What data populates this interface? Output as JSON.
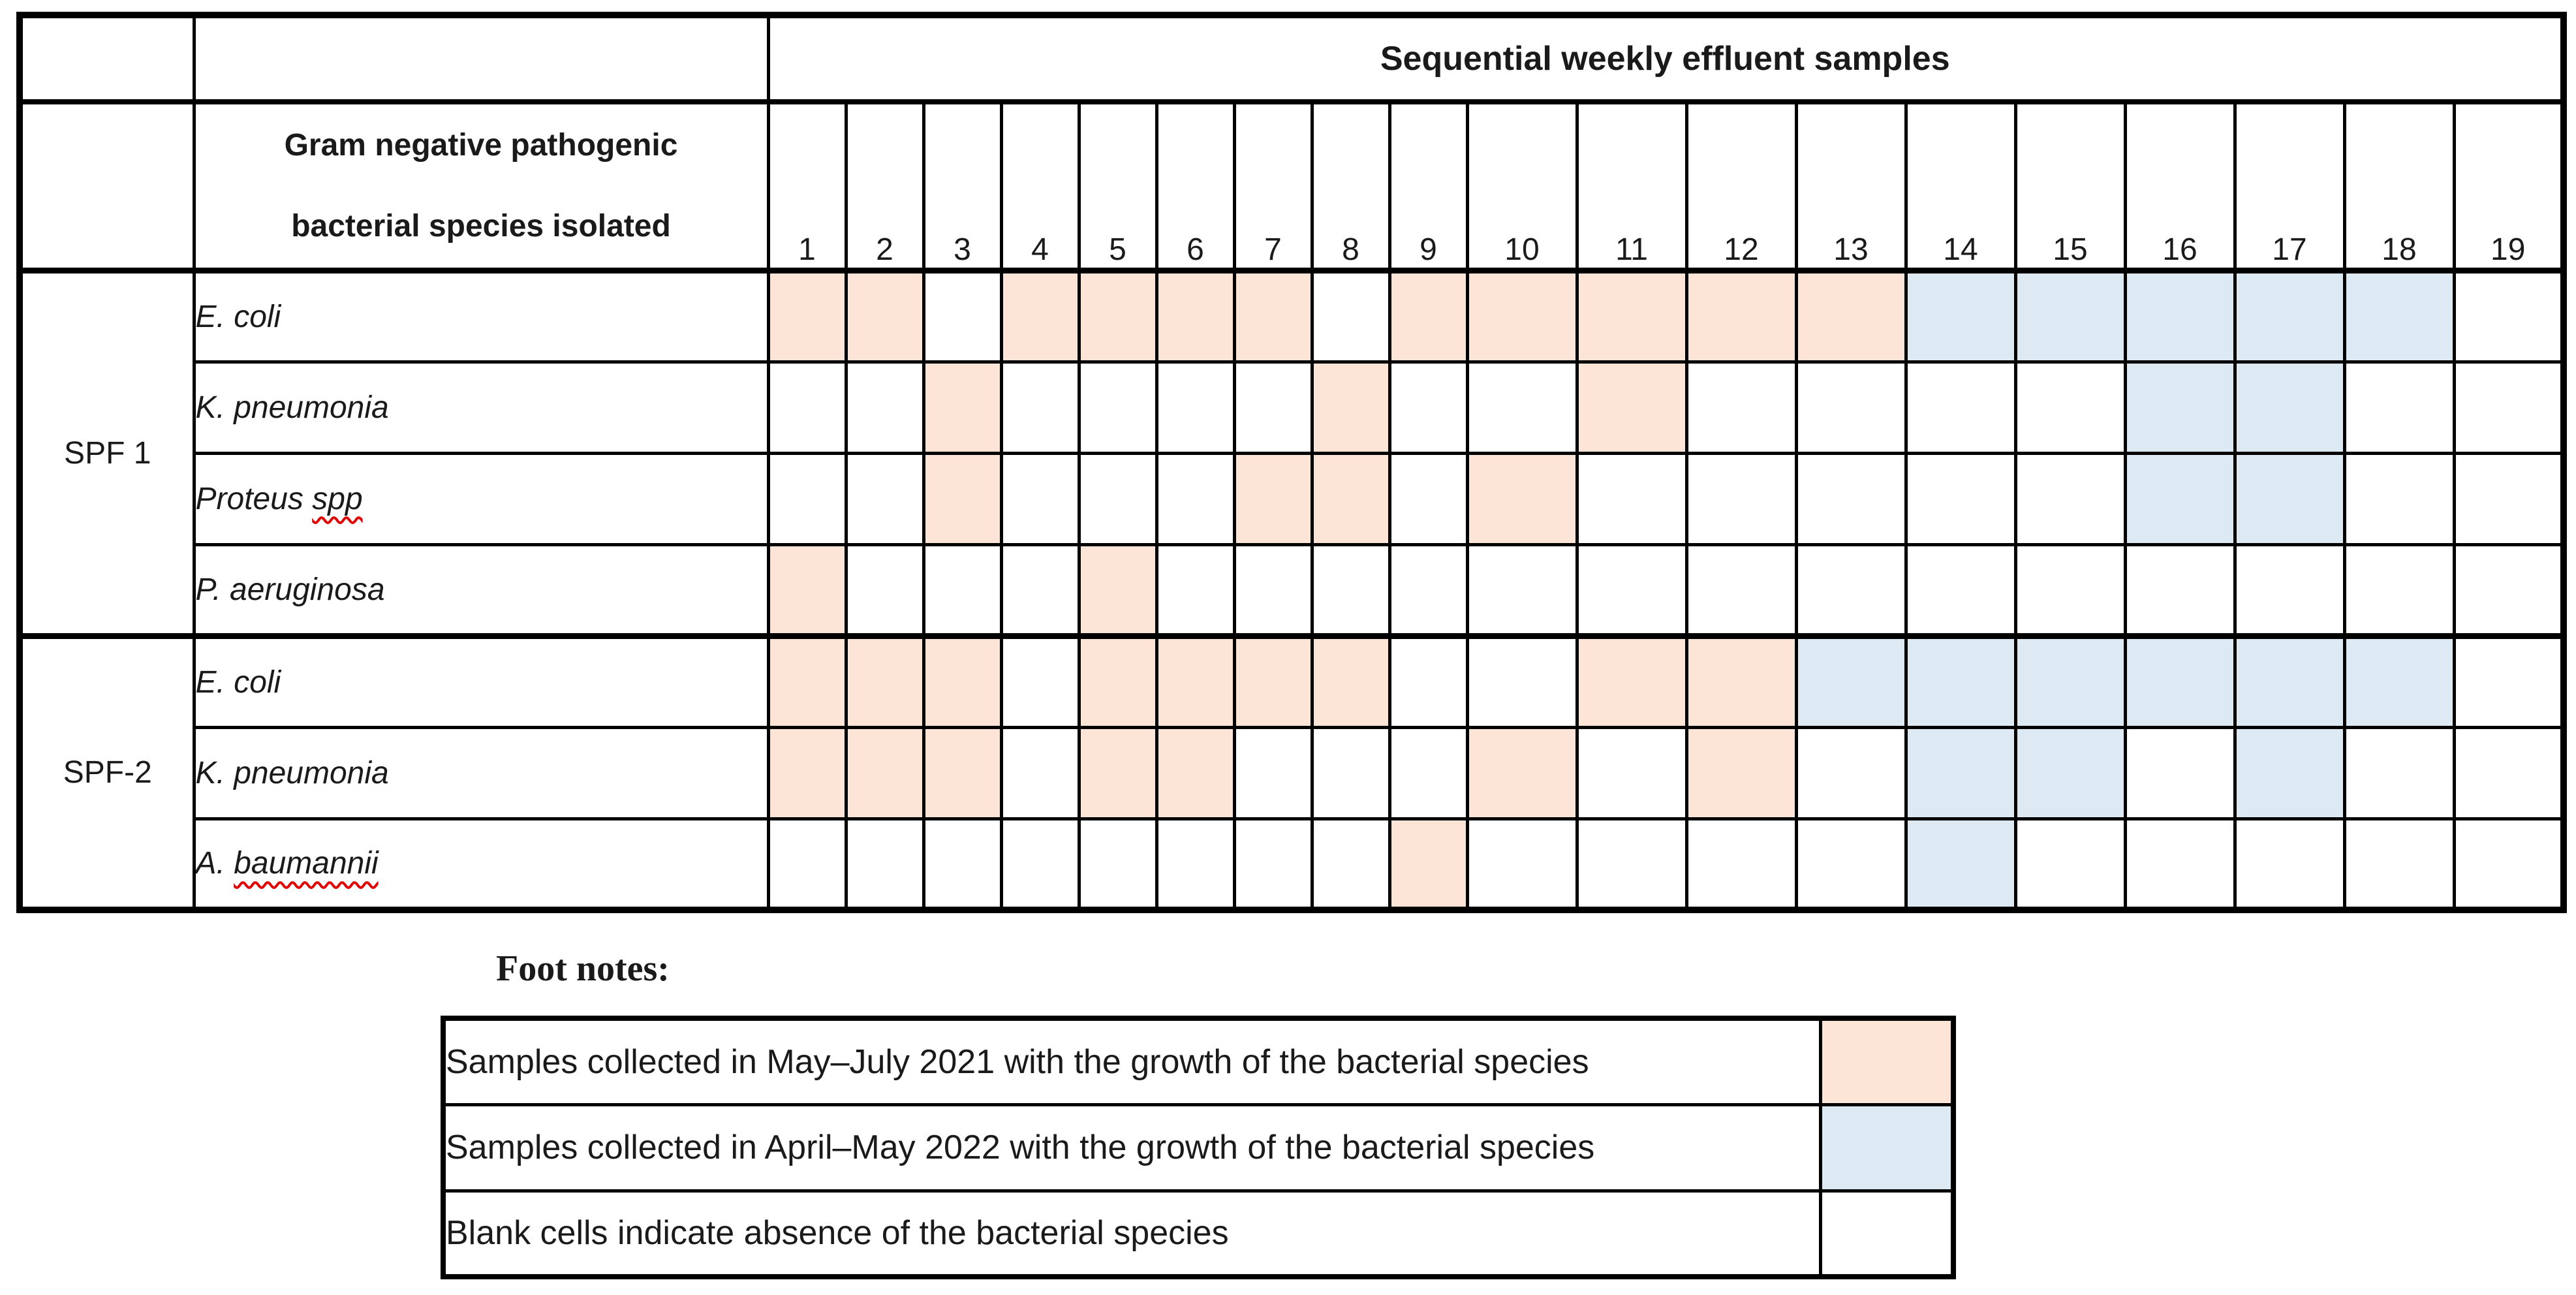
{
  "table": {
    "title": "Sequential weekly effluent samples",
    "species_header_lines": [
      "Gram negative pathogenic",
      "bacterial species isolated"
    ],
    "week_numbers": [
      "1",
      "2",
      "3",
      "4",
      "5",
      "6",
      "7",
      "8",
      "9",
      "10",
      "11",
      "12",
      "13",
      "14",
      "15",
      "16",
      "17",
      "18",
      "19"
    ],
    "groups": [
      {
        "label": "SPF 1",
        "rows": [
          {
            "name_prefix": "E. coli",
            "name_wavy": "",
            "cells": [
              "2021",
              "2021",
              "",
              "2021",
              "2021",
              "2021",
              "2021",
              "",
              "2021",
              "2021",
              "2021",
              "2021",
              "2021",
              "2022",
              "2022",
              "2022",
              "2022",
              "2022",
              ""
            ]
          },
          {
            "name_prefix": "K. pneumonia",
            "name_wavy": "",
            "cells": [
              "",
              "",
              "2021",
              "",
              "",
              "",
              "",
              "2021",
              "",
              "",
              "2021",
              "",
              "",
              "",
              "",
              "2022",
              "2022",
              "",
              ""
            ]
          },
          {
            "name_prefix": "Proteus ",
            "name_wavy": "spp",
            "cells": [
              "",
              "",
              "2021",
              "",
              "",
              "",
              "2021",
              "2021",
              "",
              "2021",
              "",
              "",
              "",
              "",
              "",
              "2022",
              "2022",
              "",
              ""
            ]
          },
          {
            "name_prefix": "P. aeruginosa",
            "name_wavy": "",
            "cells": [
              "2021",
              "",
              "",
              "",
              "2021",
              "",
              "",
              "",
              "",
              "",
              "",
              "",
              "",
              "",
              "",
              "",
              "",
              "",
              ""
            ]
          }
        ]
      },
      {
        "label": "SPF-2",
        "rows": [
          {
            "name_prefix": "E. coli",
            "name_wavy": "",
            "cells": [
              "2021",
              "2021",
              "2021",
              "",
              "2021",
              "2021",
              "2021",
              "2021",
              "",
              "",
              "2021",
              "2021",
              "2022",
              "2022",
              "2022",
              "2022",
              "2022",
              "2022",
              ""
            ]
          },
          {
            "name_prefix": "K. pneumonia",
            "name_wavy": "",
            "cells": [
              "2021",
              "2021",
              "2021",
              "",
              "2021",
              "2021",
              "",
              "",
              "",
              "2021",
              "",
              "2021",
              "",
              "2022",
              "2022",
              "",
              "2022",
              "",
              ""
            ]
          },
          {
            "name_prefix": "A. ",
            "name_wavy": "baumannii",
            "cells": [
              "",
              "",
              "",
              "",
              "",
              "",
              "",
              "",
              "2021",
              "",
              "",
              "",
              "",
              "2022",
              "",
              "",
              "",
              "",
              ""
            ]
          }
        ]
      }
    ]
  },
  "footnotes": {
    "heading": "Foot notes:",
    "items": [
      {
        "text": "Samples collected in May–July 2021 with the growth of the bacterial species",
        "swatch": "2021"
      },
      {
        "text": "Samples collected in April–May 2022 with the growth of the bacterial species",
        "swatch": "2022"
      },
      {
        "text": "Blank cells indicate absence of the bacterial species",
        "swatch": "none"
      }
    ]
  },
  "colors": {
    "growth_2021": "#fce4d6",
    "growth_2022": "#dde9f3",
    "absent": "#ffffff",
    "spellcheck_underline": "#e00000",
    "border": "#000000"
  }
}
